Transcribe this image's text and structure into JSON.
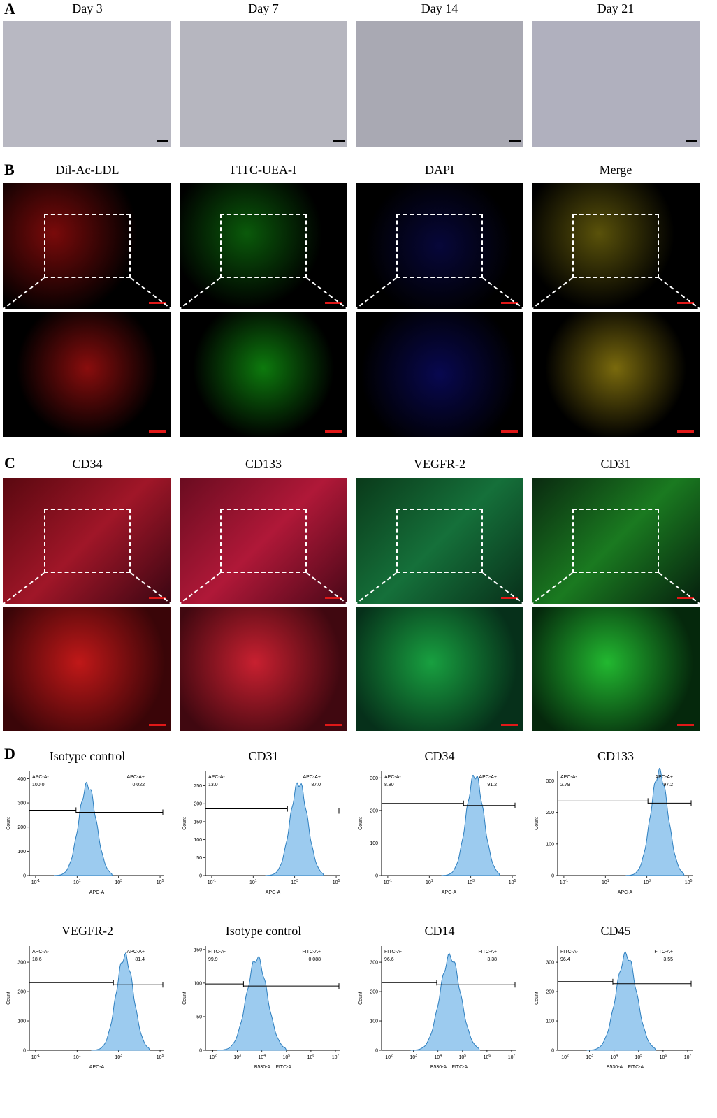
{
  "panels": {
    "A": {
      "label": "A",
      "columns": [
        "Day 3",
        "Day 7",
        "Day 14",
        "Day 21"
      ]
    },
    "B": {
      "label": "B",
      "columns": [
        "Dil-Ac-LDL",
        "FITC-UEA-I",
        "DAPI",
        "Merge"
      ]
    },
    "C": {
      "label": "C",
      "columns": [
        "CD34",
        "CD133",
        "VEGFR-2",
        "CD31"
      ]
    },
    "D": {
      "label": "D"
    }
  },
  "colors": {
    "red": "#e01818",
    "green": "#22c422",
    "blue": "#2a2aff",
    "yellow": "#d8c81a",
    "histogram_fill": "#9ccbef",
    "histogram_line": "#2e7fbf"
  },
  "chart_data": [
    {
      "type": "area",
      "title": "Isotype control",
      "xlabel": "APC-A",
      "ylabel": "Count",
      "xscale": "log",
      "xticks": [
        "10^-1",
        "10^1",
        "10^3",
        "10^5"
      ],
      "yticks": [
        0,
        100,
        200,
        300,
        400
      ],
      "ylim": [
        0,
        430
      ],
      "gate_left": {
        "label": "APC-A-",
        "value": "100.0"
      },
      "gate_right": {
        "label": "APC-A+",
        "value": "0.022"
      },
      "peak_log": 1.5,
      "peak_count": 375
    },
    {
      "type": "area",
      "title": "CD31",
      "xlabel": "APC-A",
      "ylabel": "Count",
      "xscale": "log",
      "xticks": [
        "10^-1",
        "10^1",
        "10^3",
        "10^5"
      ],
      "yticks": [
        0,
        50,
        100,
        150,
        200,
        250
      ],
      "ylim": [
        0,
        290
      ],
      "gate_left": {
        "label": "APC-A-",
        "value": "13.0"
      },
      "gate_right": {
        "label": "APC-A+",
        "value": "87.0"
      },
      "peak_log": 3.2,
      "peak_count": 258
    },
    {
      "type": "area",
      "title": "CD34",
      "xlabel": "APC-A",
      "ylabel": "Count",
      "xscale": "log",
      "xticks": [
        "10^-1",
        "10^1",
        "10^3",
        "10^5"
      ],
      "yticks": [
        0,
        100,
        200,
        300
      ],
      "ylim": [
        0,
        320
      ],
      "gate_left": {
        "label": "APC-A-",
        "value": "8.80"
      },
      "gate_right": {
        "label": "APC-A+",
        "value": "91.2"
      },
      "peak_log": 3.2,
      "peak_count": 308
    },
    {
      "type": "area",
      "title": "CD133",
      "xlabel": "APC-A",
      "ylabel": "Count",
      "xscale": "log",
      "xticks": [
        "10^-1",
        "10^1",
        "10^3",
        "10^5"
      ],
      "yticks": [
        0,
        100,
        200,
        300
      ],
      "ylim": [
        0,
        330
      ],
      "gate_left": {
        "label": "APC-A-",
        "value": "2.79"
      },
      "gate_right": {
        "label": "APC-A+",
        "value": "97.2"
      },
      "peak_log": 3.6,
      "peak_count": 328
    },
    {
      "type": "area",
      "title": "VEGFR-2",
      "xlabel": "APC-A",
      "ylabel": "Count",
      "xscale": "log",
      "xticks": [
        "10^-1",
        "10^1",
        "10^3",
        "10^5"
      ],
      "yticks": [
        0,
        100,
        200,
        300
      ],
      "ylim": [
        0,
        355
      ],
      "gate_left": {
        "label": "APC-A-",
        "value": "18.6"
      },
      "gate_right": {
        "label": "APC-A+",
        "value": "81.4"
      },
      "peak_log": 3.3,
      "peak_count": 320
    },
    {
      "type": "area",
      "title": "Isotype control",
      "xlabel": "B530-A :: FITC-A",
      "ylabel": "Count",
      "xscale": "log",
      "xticks": [
        "10^2",
        "10^3",
        "10^4",
        "10^5",
        "10^6",
        "10^7"
      ],
      "yticks": [
        0,
        50,
        100,
        150
      ],
      "ylim": [
        0,
        155
      ],
      "gate_left": {
        "label": "FITC-A-",
        "value": "99.9"
      },
      "gate_right": {
        "label": "FITC-A+",
        "value": "0.088"
      },
      "peak_log": 3.8,
      "peak_count": 137
    },
    {
      "type": "area",
      "title": "CD14",
      "xlabel": "B530-A :: FITC-A",
      "ylabel": "Count",
      "xscale": "log",
      "xticks": [
        "10^2",
        "10^3",
        "10^4",
        "10^5",
        "10^6",
        "10^7"
      ],
      "yticks": [
        0,
        100,
        200,
        300
      ],
      "ylim": [
        0,
        355
      ],
      "gate_left": {
        "label": "FITC-A-",
        "value": "96.6"
      },
      "gate_right": {
        "label": "FITC-A+",
        "value": "3.38"
      },
      "peak_log": 4.5,
      "peak_count": 320
    },
    {
      "type": "area",
      "title": "CD45",
      "xlabel": "B530-A :: FITC-A",
      "ylabel": "Count",
      "xscale": "log",
      "xticks": [
        "10^2",
        "10^3",
        "10^4",
        "10^5",
        "10^6",
        "10^7"
      ],
      "yticks": [
        0,
        100,
        200,
        300
      ],
      "ylim": [
        0,
        355
      ],
      "gate_left": {
        "label": "FITC-A-",
        "value": "96.4"
      },
      "gate_right": {
        "label": "FITC-A+",
        "value": "3.55"
      },
      "peak_log": 4.5,
      "peak_count": 325
    }
  ]
}
